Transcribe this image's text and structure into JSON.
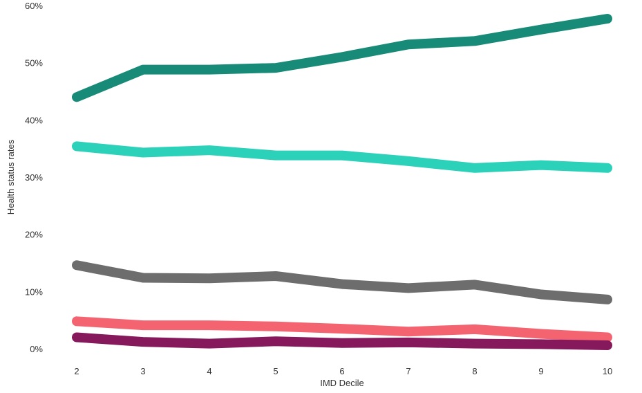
{
  "chart_data": {
    "type": "line",
    "title": "",
    "xlabel": "IMD Decile",
    "ylabel": "Health status rates",
    "x": [
      2,
      3,
      4,
      5,
      6,
      7,
      8,
      9,
      10
    ],
    "x_tick_labels": [
      "2",
      "3",
      "4",
      "5",
      "6",
      "7",
      "8",
      "9",
      "10"
    ],
    "ylim": [
      0,
      60
    ],
    "y_ticks": [
      0,
      10,
      20,
      30,
      40,
      50,
      60
    ],
    "y_tick_labels": [
      "0%",
      "10%",
      "20%",
      "30%",
      "40%",
      "50%",
      "60%"
    ],
    "grid": false,
    "legend": "none",
    "series": [
      {
        "color": "#178a78",
        "values": [
          44.0,
          48.8,
          48.8,
          49.1,
          51.0,
          53.2,
          53.8,
          55.8,
          57.7
        ]
      },
      {
        "color": "#2bd1b8",
        "values": [
          35.4,
          34.3,
          34.7,
          33.8,
          33.8,
          32.8,
          31.6,
          32.1,
          31.6
        ]
      },
      {
        "color": "#6d6d6d",
        "values": [
          14.6,
          12.4,
          12.3,
          12.7,
          11.3,
          10.6,
          11.2,
          9.5,
          8.6
        ]
      },
      {
        "color": "#f46470",
        "values": [
          4.8,
          4.1,
          4.1,
          3.9,
          3.5,
          3.0,
          3.4,
          2.6,
          2.0
        ]
      },
      {
        "color": "#86195c",
        "values": [
          2.0,
          1.2,
          0.9,
          1.3,
          1.0,
          1.1,
          0.9,
          0.8,
          0.6
        ]
      }
    ]
  }
}
